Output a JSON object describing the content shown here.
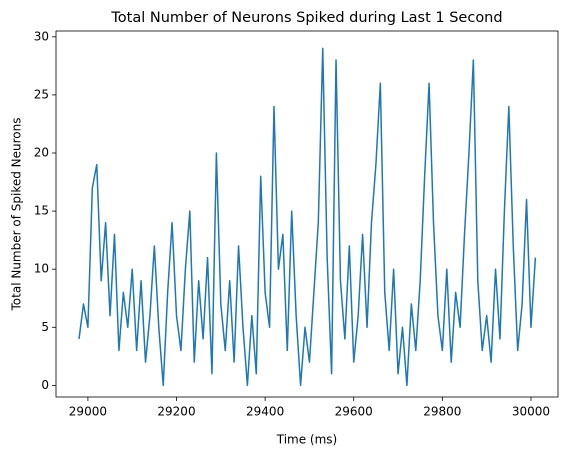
{
  "chart_data": {
    "type": "line",
    "title": "Total Number of Neurons Spiked during Last 1 Second",
    "x_label": "Time (ms)",
    "y_label": "Total Number of Spiked Neurons",
    "x": [
      28980,
      28990,
      29000,
      29010,
      29020,
      29030,
      29040,
      29050,
      29060,
      29070,
      29080,
      29090,
      29100,
      29110,
      29120,
      29130,
      29140,
      29150,
      29160,
      29170,
      29180,
      29190,
      29200,
      29210,
      29220,
      29230,
      29240,
      29250,
      29260,
      29270,
      29280,
      29290,
      29300,
      29310,
      29320,
      29330,
      29340,
      29350,
      29360,
      29370,
      29380,
      29390,
      29400,
      29410,
      29420,
      29430,
      29440,
      29450,
      29460,
      29470,
      29480,
      29490,
      29500,
      29510,
      29520,
      29530,
      29540,
      29550,
      29560,
      29570,
      29580,
      29590,
      29600,
      29610,
      29620,
      29630,
      29640,
      29650,
      29660,
      29670,
      29680,
      29690,
      29700,
      29710,
      29720,
      29730,
      29740,
      29750,
      29760,
      29770,
      29780,
      29790,
      29800,
      29810,
      29820,
      29830,
      29840,
      29850,
      29860,
      29870,
      29880,
      29890,
      29900,
      29910,
      29920,
      29930,
      29940,
      29950,
      29960,
      29970,
      29980,
      29990,
      30000,
      30010
    ],
    "series": [
      {
        "name": "Total Number of Spiked Neurons",
        "color": "#1f77b4",
        "values": [
          4,
          7,
          5,
          17,
          19,
          9,
          14,
          6,
          13,
          3,
          8,
          5,
          10,
          3,
          9,
          2,
          6,
          12,
          5,
          0,
          8,
          14,
          6,
          3,
          10,
          15,
          2,
          9,
          4,
          11,
          1,
          20,
          7,
          3,
          9,
          2,
          12,
          5,
          0,
          6,
          1,
          18,
          8,
          5,
          24,
          10,
          13,
          3,
          15,
          6,
          0,
          5,
          2,
          8,
          14,
          29,
          11,
          1,
          28,
          9,
          4,
          12,
          2,
          6,
          13,
          5,
          14,
          19,
          26,
          8,
          3,
          10,
          1,
          5,
          0,
          7,
          3,
          9,
          18,
          26,
          14,
          6,
          3,
          10,
          2,
          8,
          5,
          13,
          20,
          28,
          9,
          3,
          6,
          2,
          10,
          4,
          15,
          24,
          12,
          3,
          7,
          16,
          5,
          11
        ]
      }
    ],
    "xlim": [
      28928,
      30061
    ],
    "ylim": [
      -1.0,
      30.5
    ],
    "xticks": [
      29000,
      29200,
      29400,
      29600,
      29800,
      30000
    ],
    "yticks": [
      0,
      5,
      10,
      15,
      20,
      25,
      30
    ]
  }
}
